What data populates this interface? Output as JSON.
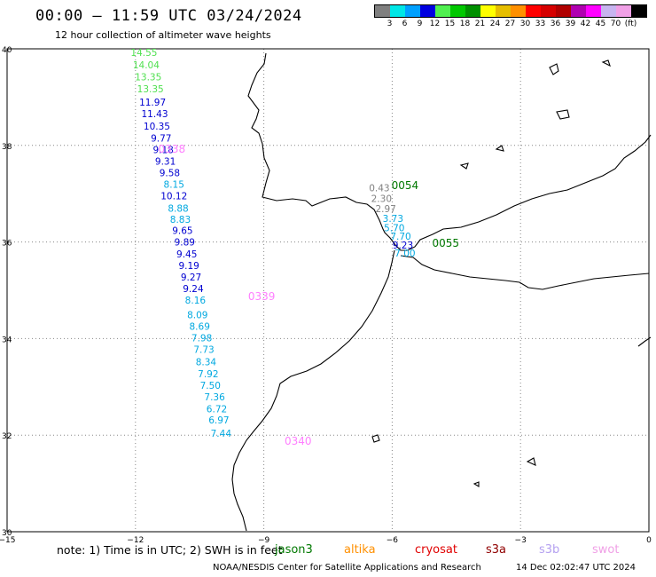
{
  "header": {
    "title": "00:00 – 11:59 UTC 03/24/2024",
    "subtitle": "12 hour collection of altimeter wave heights"
  },
  "colorbar": {
    "colors": [
      "#7f7f7f",
      "#00e6e6",
      "#00a0ff",
      "#0000e0",
      "#50f050",
      "#00c800",
      "#009000",
      "#ffff00",
      "#e6be00",
      "#ff9000",
      "#ff0000",
      "#d60000",
      "#b00000",
      "#b000b0",
      "#ff00ff",
      "#c8b4f0",
      "#f0a0e6",
      "#000000"
    ],
    "labels": [
      "3",
      "6",
      "9",
      "12",
      "15",
      "18",
      "21",
      "24",
      "27",
      "30",
      "33",
      "36",
      "39",
      "42",
      "45",
      "70",
      "(ft)"
    ]
  },
  "axes": {
    "lon_labels": [
      "−15",
      "−12",
      "−9",
      "−6",
      "−3",
      "0"
    ],
    "lat_labels": [
      "40",
      "38",
      "36",
      "34",
      "32",
      "30"
    ],
    "lon_range": [
      -15,
      0
    ],
    "lat_range": [
      30,
      40
    ]
  },
  "track_west": {
    "time_labels": [
      {
        "text": "0338",
        "lat": 37.85,
        "lon": -11.15,
        "color": "#ff80ff"
      },
      {
        "text": "0339",
        "lat": 34.8,
        "lon": -9.05,
        "color": "#ff80ff"
      },
      {
        "text": "0340",
        "lat": 31.8,
        "lon": -8.2,
        "color": "#ff80ff"
      }
    ],
    "points": [
      {
        "v": "14.55",
        "lat": 39.85,
        "lon": -11.8,
        "color": "#50e050"
      },
      {
        "v": "14.04",
        "lat": 39.6,
        "lon": -11.75,
        "color": "#50e050"
      },
      {
        "v": "13.35",
        "lat": 39.35,
        "lon": -11.7,
        "color": "#50e050"
      },
      {
        "v": "13.35",
        "lat": 39.1,
        "lon": -11.65,
        "color": "#50e050"
      },
      {
        "v": "11.97",
        "lat": 38.82,
        "lon": -11.6,
        "color": "#0000d0"
      },
      {
        "v": "11.43",
        "lat": 38.58,
        "lon": -11.55,
        "color": "#0000d0"
      },
      {
        "v": "10.35",
        "lat": 38.33,
        "lon": -11.5,
        "color": "#0000d0"
      },
      {
        "v": "9.77",
        "lat": 38.08,
        "lon": -11.4,
        "color": "#0000d0"
      },
      {
        "v": "9.18",
        "lat": 37.84,
        "lon": -11.35,
        "color": "#0000d0"
      },
      {
        "v": "9.31",
        "lat": 37.6,
        "lon": -11.3,
        "color": "#0000d0"
      },
      {
        "v": "9.58",
        "lat": 37.36,
        "lon": -11.2,
        "color": "#0000d0"
      },
      {
        "v": "8.15",
        "lat": 37.12,
        "lon": -11.1,
        "color": "#00a8e0"
      },
      {
        "v": "10.12",
        "lat": 36.88,
        "lon": -11.1,
        "color": "#0000d0"
      },
      {
        "v": "8.88",
        "lat": 36.63,
        "lon": -11.0,
        "color": "#00a8e0"
      },
      {
        "v": "8.83",
        "lat": 36.4,
        "lon": -10.95,
        "color": "#00a8e0"
      },
      {
        "v": "9.65",
        "lat": 36.17,
        "lon": -10.9,
        "color": "#0000d0"
      },
      {
        "v": "9.89",
        "lat": 35.93,
        "lon": -10.85,
        "color": "#0000d0"
      },
      {
        "v": "9.45",
        "lat": 35.68,
        "lon": -10.8,
        "color": "#0000d0"
      },
      {
        "v": "9.19",
        "lat": 35.44,
        "lon": -10.75,
        "color": "#0000d0"
      },
      {
        "v": "9.27",
        "lat": 35.2,
        "lon": -10.7,
        "color": "#0000d0"
      },
      {
        "v": "9.24",
        "lat": 34.96,
        "lon": -10.65,
        "color": "#0000d0"
      },
      {
        "v": "8.16",
        "lat": 34.72,
        "lon": -10.6,
        "color": "#00a8e0"
      },
      {
        "v": "8.09",
        "lat": 34.42,
        "lon": -10.55,
        "color": "#00a8e0"
      },
      {
        "v": "8.69",
        "lat": 34.18,
        "lon": -10.5,
        "color": "#00a8e0"
      },
      {
        "v": "7.98",
        "lat": 33.94,
        "lon": -10.45,
        "color": "#00a8e0"
      },
      {
        "v": "7.73",
        "lat": 33.7,
        "lon": -10.4,
        "color": "#00a8e0"
      },
      {
        "v": "8.34",
        "lat": 33.45,
        "lon": -10.35,
        "color": "#00a8e0"
      },
      {
        "v": "7.92",
        "lat": 33.2,
        "lon": -10.3,
        "color": "#00a8e0"
      },
      {
        "v": "7.50",
        "lat": 32.96,
        "lon": -10.25,
        "color": "#00a8e0"
      },
      {
        "v": "7.36",
        "lat": 32.72,
        "lon": -10.15,
        "color": "#00a8e0"
      },
      {
        "v": "6.72",
        "lat": 32.47,
        "lon": -10.1,
        "color": "#00a8e0"
      },
      {
        "v": "6.97",
        "lat": 32.24,
        "lon": -10.05,
        "color": "#00a8e0"
      },
      {
        "v": "7.44",
        "lat": 31.97,
        "lon": -10.0,
        "color": "#00a8e0"
      }
    ]
  },
  "track_gibraltar": {
    "time_labels": [
      {
        "text": "0054",
        "lat": 37.1,
        "lon": -5.7,
        "color": "#007800"
      },
      {
        "text": "0055",
        "lat": 35.9,
        "lon": -4.75,
        "color": "#007800"
      }
    ],
    "points": [
      {
        "v": "0.43",
        "lat": 37.05,
        "lon": -6.3,
        "color": "#808080"
      },
      {
        "v": "2.30",
        "lat": 36.83,
        "lon": -6.25,
        "color": "#808080"
      },
      {
        "v": "2.97",
        "lat": 36.62,
        "lon": -6.15,
        "color": "#808080"
      },
      {
        "v": "3.73",
        "lat": 36.42,
        "lon": -5.98,
        "color": "#00a8e0"
      },
      {
        "v": "5.70",
        "lat": 36.22,
        "lon": -5.95,
        "color": "#00a8e0"
      },
      {
        "v": "7.70",
        "lat": 36.05,
        "lon": -5.8,
        "color": "#00a8e0"
      },
      {
        "v": "9.23",
        "lat": 35.86,
        "lon": -5.75,
        "color": "#0000d0"
      },
      {
        "v": "7.00",
        "lat": 35.7,
        "lon": -5.7,
        "color": "#00a8e0"
      }
    ]
  },
  "footer": {
    "note": "note:  1) Time is in UTC; 2) SWH is in feet",
    "satellites": [
      {
        "name": "jason3",
        "color": "#007800"
      },
      {
        "name": "altika",
        "color": "#ff9000"
      },
      {
        "name": "cryosat",
        "color": "#e00000"
      },
      {
        "name": "s3a",
        "color": "#900000"
      },
      {
        "name": "s3b",
        "color": "#b4a0f0"
      },
      {
        "name": "swot",
        "color": "#f0a0e6"
      }
    ],
    "credit": "NOAA/NESDIS Center for Satellite Applications and Research",
    "timestamp": "14 Dec 02:02:47 UTC 2024"
  }
}
